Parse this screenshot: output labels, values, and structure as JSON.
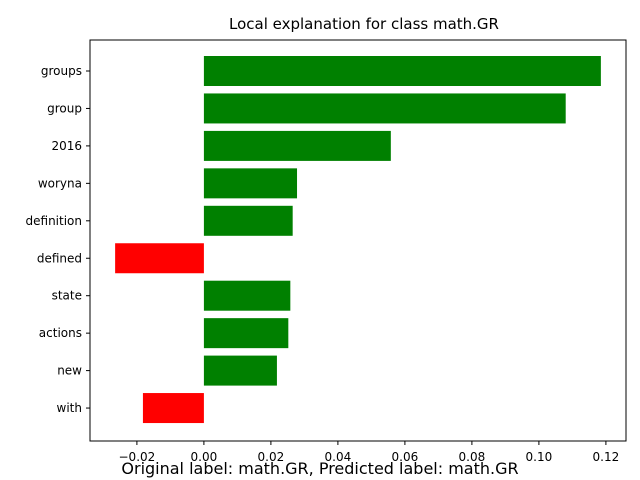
{
  "chart_data": {
    "type": "bar",
    "orientation": "horizontal",
    "title": "Local explanation for class math.GR",
    "categories": [
      "groups",
      "group",
      "2016",
      "woryna",
      "definition",
      "defined",
      "state",
      "actions",
      "new",
      "with"
    ],
    "values": [
      0.1185,
      0.108,
      0.0558,
      0.0278,
      0.0265,
      -0.0265,
      0.0258,
      0.0252,
      0.0218,
      -0.0182
    ],
    "xlim": [
      -0.034,
      0.126
    ],
    "xticks": [
      -0.02,
      0.0,
      0.02,
      0.04,
      0.06,
      0.08,
      0.1,
      0.12
    ],
    "xtick_labels": [
      "−0.02",
      "0.00",
      "0.02",
      "0.04",
      "0.06",
      "0.08",
      "0.10",
      "0.12"
    ],
    "positive_color": "#008000",
    "negative_color": "#ff0000",
    "xlabel": "",
    "ylabel": "",
    "grid": false
  },
  "caption": "Original label: math.GR, Predicted label: math.GR"
}
